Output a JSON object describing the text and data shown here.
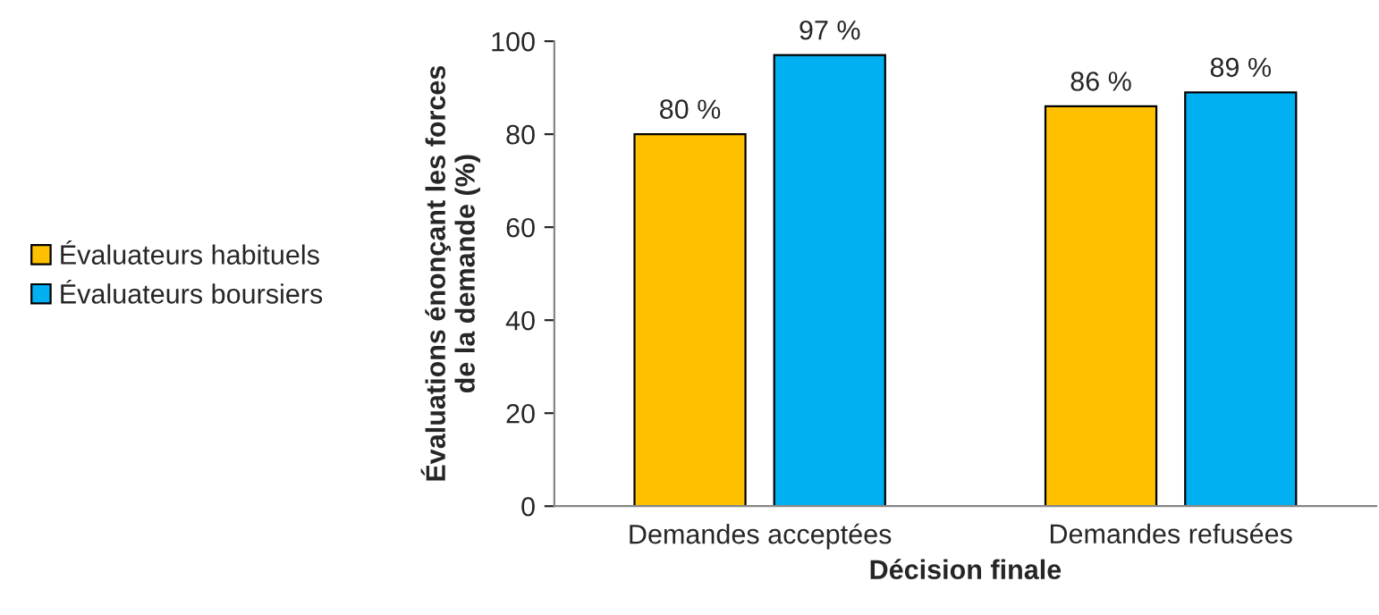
{
  "chart_data": {
    "type": "bar",
    "xlabel": "Décision finale",
    "ylabel": "Évaluations énonçant les forces\nde la demande (%)",
    "categories": [
      "Demandes acceptées",
      "Demandes refusées"
    ],
    "series": [
      {
        "name": "Évaluateurs habituels",
        "color": "#ffc000",
        "values": [
          80,
          86
        ],
        "value_labels": [
          "80 %",
          "86 %"
        ]
      },
      {
        "name": "Évaluateurs boursiers",
        "color": "#00b0f0",
        "values": [
          97,
          89
        ],
        "value_labels": [
          "97 %",
          "89 %"
        ]
      }
    ],
    "ylim": [
      0,
      100
    ],
    "yticks": [
      0,
      20,
      40,
      60,
      80,
      100
    ],
    "grid": false,
    "legend": "left"
  }
}
